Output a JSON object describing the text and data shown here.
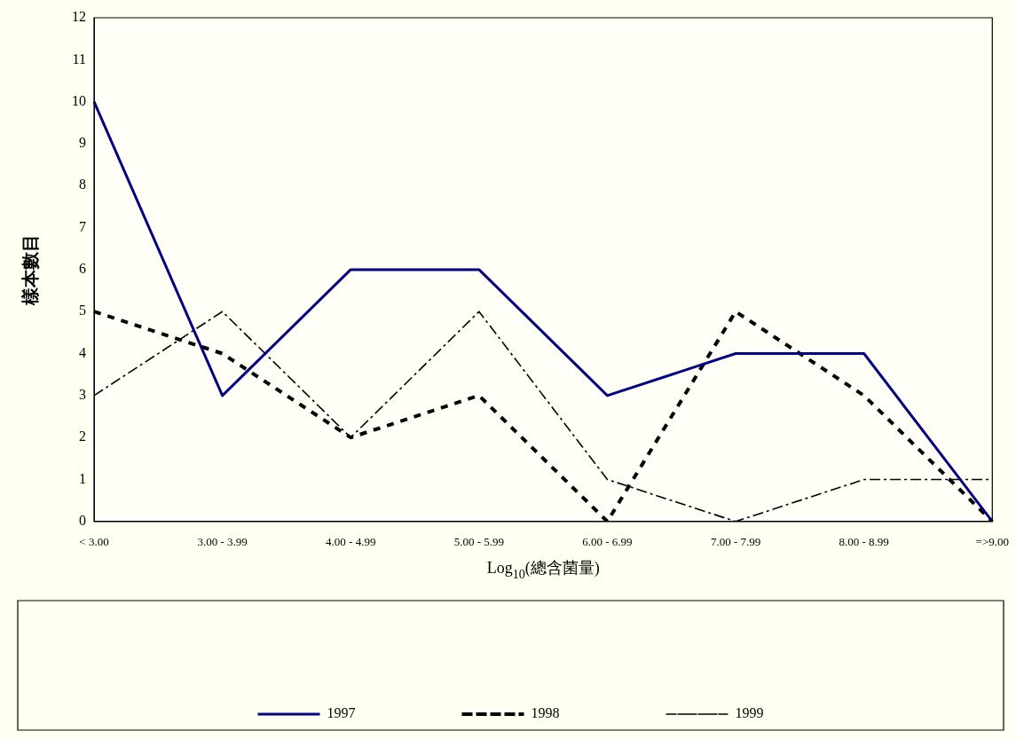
{
  "chart_data": {
    "type": "line",
    "xlabel": "Log$_{10}$(總含菌量)",
    "ylabel": "樣本數目",
    "categories": [
      "< 3.00",
      "3.00 - 3.99",
      "4.00 - 4.99",
      "5.00 - 5.99",
      "6.00 - 6.99",
      "7.00 - 7.99",
      "8.00 - 8.99",
      "=>9.00"
    ],
    "series": [
      {
        "name": "1997",
        "color": "#000080",
        "line_style": "solid",
        "values": [
          10,
          3,
          6,
          6,
          3,
          4,
          4,
          0
        ]
      },
      {
        "name": "1998",
        "color": "#000000",
        "line_style": "dashed",
        "values": [
          5,
          4,
          2,
          3,
          0,
          5,
          3,
          0
        ]
      },
      {
        "name": "1999",
        "color": "#000000",
        "line_style": "dashed",
        "values": [
          3,
          5,
          2,
          5,
          1,
          0,
          1,
          1
        ]
      }
    ],
    "ylim": [
      0,
      12
    ],
    "yticks": [
      0,
      1,
      2,
      3,
      4,
      5,
      6,
      7,
      8,
      9,
      10,
      11,
      12
    ],
    "grid": false,
    "legend": "bottom",
    "marker": "none"
  }
}
